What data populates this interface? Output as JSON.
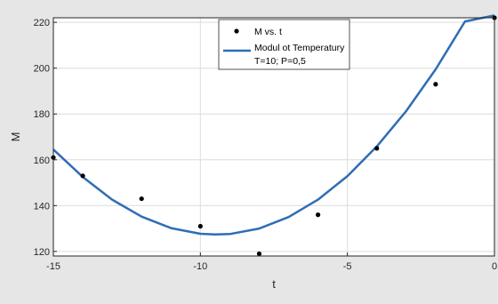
{
  "chart_data": {
    "type": "scatter",
    "title": "",
    "xlabel": "t",
    "ylabel": "M",
    "xlim": [
      -15,
      0
    ],
    "ylim": [
      118,
      222
    ],
    "xticks": [
      -15,
      -10,
      -5,
      0
    ],
    "yticks": [
      120,
      140,
      160,
      180,
      200,
      220
    ],
    "grid": true,
    "legend_position": "top",
    "series": [
      {
        "name": "M vs. t",
        "kind": "points",
        "color": "#000000",
        "x": [
          -15,
          -14,
          -12,
          -10,
          -8,
          -6,
          -4,
          -2,
          0
        ],
        "y": [
          161,
          153,
          143,
          131,
          119,
          136,
          165,
          193,
          222
        ]
      },
      {
        "name": "Modul ot Temperatury",
        "name_line2": "T=10; P=0,5",
        "kind": "line",
        "color": "#2f6db5",
        "x": [
          -15,
          -14,
          -13,
          -12,
          -11,
          -10,
          -9.5,
          -9,
          -8,
          -7,
          -6,
          -5,
          -4,
          -3,
          -2,
          -1,
          0
        ],
        "y": [
          164.5,
          152.5,
          142.6,
          135.2,
          130.2,
          127.7,
          127.4,
          127.6,
          130.0,
          135.0,
          142.6,
          152.9,
          165.8,
          181.3,
          199.5,
          220.4,
          223.0
        ]
      }
    ]
  }
}
